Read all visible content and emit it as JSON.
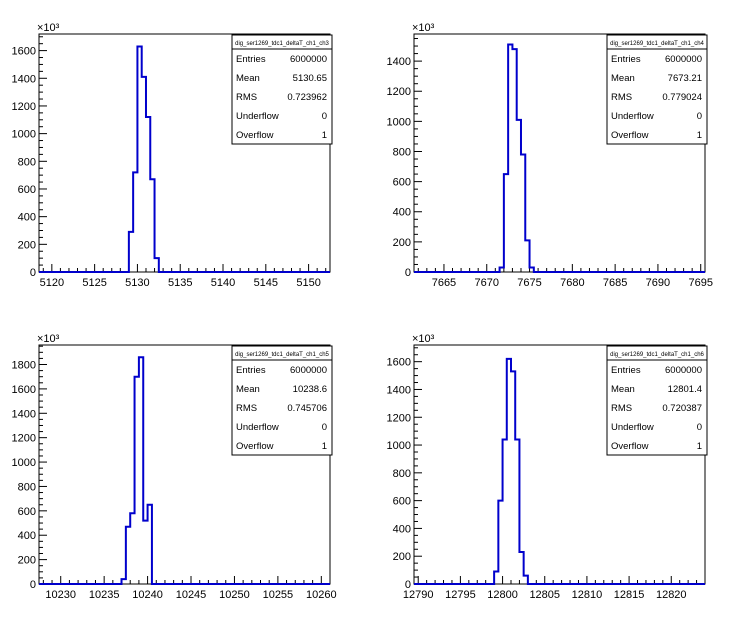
{
  "chart_data": [
    {
      "type": "histogram",
      "title": "dig_ser1269_tdc1_deltaT_ch1_ch3",
      "exponent_label": "×10³",
      "xlim": [
        5118.5,
        5152.5
      ],
      "ylim": [
        0,
        1720
      ],
      "xticks": [
        5120,
        5125,
        5130,
        5135,
        5140,
        5145,
        5150
      ],
      "yticks": [
        0,
        200,
        400,
        600,
        800,
        1000,
        1200,
        1400,
        1600
      ],
      "bins": [
        [
          5128.5,
          0
        ],
        [
          5129,
          290
        ],
        [
          5129.5,
          720
        ],
        [
          5130,
          1630
        ],
        [
          5130.5,
          1410
        ],
        [
          5131,
          1120
        ],
        [
          5131.5,
          670
        ],
        [
          5132,
          100
        ],
        [
          5132.5,
          0
        ]
      ],
      "stats": [
        {
          "label": "Entries",
          "value": "6000000"
        },
        {
          "label": "Mean",
          "value": "5130.65"
        },
        {
          "label": "RMS",
          "value": "0.723962"
        },
        {
          "label": "Underflow",
          "value": "0"
        },
        {
          "label": "Overflow",
          "value": "1"
        }
      ]
    },
    {
      "type": "histogram",
      "title": "dig_ser1269_tdc1_deltaT_ch1_ch4",
      "exponent_label": "×10³",
      "xlim": [
        7661.5,
        7695.5
      ],
      "ylim": [
        0,
        1580
      ],
      "xticks": [
        7665,
        7670,
        7675,
        7680,
        7685,
        7690,
        7695
      ],
      "yticks": [
        0,
        200,
        400,
        600,
        800,
        1000,
        1200,
        1400
      ],
      "bins": [
        [
          7671,
          0
        ],
        [
          7671.5,
          30
        ],
        [
          7672,
          650
        ],
        [
          7672.5,
          1510
        ],
        [
          7673,
          1480
        ],
        [
          7673.5,
          1010
        ],
        [
          7674,
          780
        ],
        [
          7674.5,
          210
        ],
        [
          7675,
          30
        ],
        [
          7675.5,
          0
        ]
      ],
      "stats": [
        {
          "label": "Entries",
          "value": "6000000"
        },
        {
          "label": "Mean",
          "value": "7673.21"
        },
        {
          "label": "RMS",
          "value": "0.779024"
        },
        {
          "label": "Underflow",
          "value": "0"
        },
        {
          "label": "Overflow",
          "value": "1"
        }
      ]
    },
    {
      "type": "histogram",
      "title": "dig_ser1269_tdc1_deltaT_ch1_ch5",
      "exponent_label": "×10³",
      "xlim": [
        10227.5,
        10261
      ],
      "ylim": [
        0,
        1960
      ],
      "xticks": [
        10230,
        10235,
        10240,
        10245,
        10250,
        10255,
        10260
      ],
      "yticks": [
        0,
        200,
        400,
        600,
        800,
        1000,
        1200,
        1400,
        1600,
        1800
      ],
      "bins": [
        [
          10236.5,
          0
        ],
        [
          10237,
          40
        ],
        [
          10237.5,
          470
        ],
        [
          10238,
          580
        ],
        [
          10238.5,
          1700
        ],
        [
          10239,
          1860
        ],
        [
          10239.5,
          520
        ],
        [
          10240,
          650
        ],
        [
          10240.5,
          0
        ]
      ],
      "stats": [
        {
          "label": "Entries",
          "value": "6000000"
        },
        {
          "label": "Mean",
          "value": "10238.6"
        },
        {
          "label": "RMS",
          "value": "0.745706"
        },
        {
          "label": "Underflow",
          "value": "0"
        },
        {
          "label": "Overflow",
          "value": "1"
        }
      ]
    },
    {
      "type": "histogram",
      "title": "dig_ser1269_tdc1_deltaT_ch1_ch6",
      "exponent_label": "×10³",
      "xlim": [
        12789.5,
        12824
      ],
      "ylim": [
        0,
        1720
      ],
      "xticks": [
        12790,
        12795,
        12800,
        12805,
        12810,
        12815,
        12820
      ],
      "yticks": [
        0,
        200,
        400,
        600,
        800,
        1000,
        1200,
        1400,
        1600
      ],
      "bins": [
        [
          12798.5,
          0
        ],
        [
          12799,
          90
        ],
        [
          12799.5,
          600
        ],
        [
          12800,
          1040
        ],
        [
          12800.5,
          1620
        ],
        [
          12801,
          1530
        ],
        [
          12801.5,
          1040
        ],
        [
          12802,
          230
        ],
        [
          12802.5,
          60
        ],
        [
          12803,
          0
        ]
      ],
      "stats": [
        {
          "label": "Entries",
          "value": "6000000"
        },
        {
          "label": "Mean",
          "value": "12801.4"
        },
        {
          "label": "RMS",
          "value": "0.720387"
        },
        {
          "label": "Underflow",
          "value": "0"
        },
        {
          "label": "Overflow",
          "value": "1"
        }
      ]
    }
  ]
}
